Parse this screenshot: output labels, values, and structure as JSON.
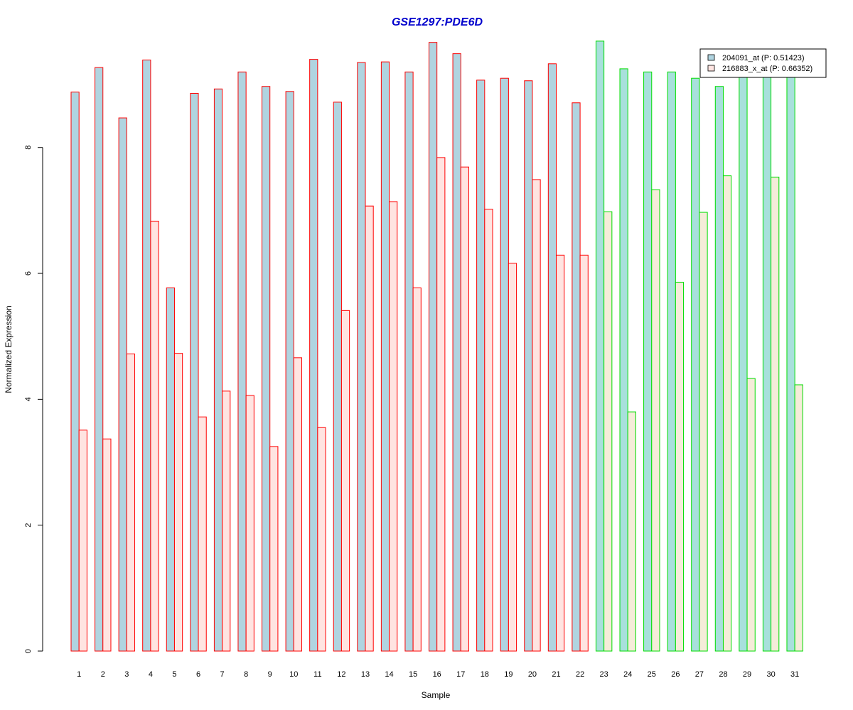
{
  "chart_data": {
    "type": "bar",
    "title": "GSE1297:PDE6D",
    "xlabel": "Sample",
    "ylabel": "Normalized Expression",
    "ylim": [
      0,
      9.7
    ],
    "yticks": [
      0,
      2,
      4,
      6,
      8
    ],
    "grid": false,
    "legend_position": "top-right",
    "categories": [
      "1",
      "2",
      "3",
      "4",
      "5",
      "6",
      "7",
      "8",
      "9",
      "10",
      "11",
      "12",
      "13",
      "14",
      "15",
      "16",
      "17",
      "18",
      "19",
      "20",
      "21",
      "22",
      "23",
      "24",
      "25",
      "26",
      "27",
      "28",
      "29",
      "30",
      "31"
    ],
    "groups": [
      {
        "samples": [
          "1",
          "2",
          "3",
          "4",
          "5",
          "6",
          "7",
          "8",
          "9",
          "10",
          "11",
          "12",
          "13",
          "14",
          "15",
          "16",
          "17",
          "18",
          "19",
          "20",
          "21",
          "22"
        ],
        "border_color": "#ff0000"
      },
      {
        "samples": [
          "23",
          "24",
          "25",
          "26",
          "27",
          "28",
          "29",
          "30",
          "31"
        ],
        "border_color": "#00dd00"
      }
    ],
    "series": [
      {
        "name": "204091_at (P: 0.51423)",
        "colors": {
          "group1": "#b0d4e0",
          "group2": "#a8e0dc"
        },
        "values": [
          8.88,
          9.27,
          8.47,
          9.39,
          5.77,
          8.86,
          8.93,
          9.2,
          8.97,
          8.89,
          9.4,
          8.72,
          9.35,
          9.36,
          9.2,
          9.67,
          9.49,
          9.07,
          9.1,
          9.06,
          9.33,
          8.71,
          9.69,
          9.25,
          9.2,
          9.2,
          9.1,
          8.97,
          9.2,
          9.2,
          9.2
        ]
      },
      {
        "name": "216883_x_at (P: 0.66352)",
        "colors": {
          "group1": "#ffe4e1",
          "group2": "#f5ecd9"
        },
        "values": [
          3.51,
          3.37,
          4.72,
          6.83,
          4.73,
          3.72,
          4.13,
          4.06,
          3.25,
          4.66,
          3.55,
          5.41,
          7.07,
          7.14,
          5.77,
          7.84,
          7.69,
          7.02,
          6.16,
          7.49,
          6.29,
          6.29,
          6.98,
          3.8,
          7.33,
          5.86,
          6.97,
          7.55,
          4.33,
          7.53,
          4.23
        ]
      }
    ],
    "colors": {
      "title": "#0000cc",
      "axis": "#000000"
    }
  }
}
